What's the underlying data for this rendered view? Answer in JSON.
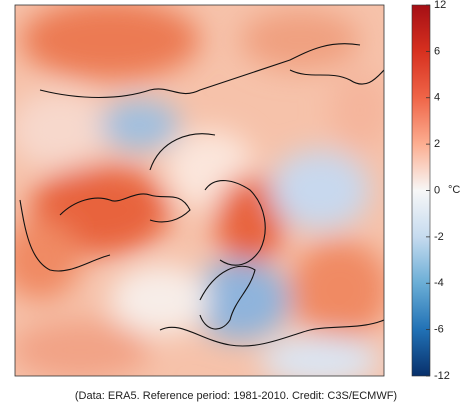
{
  "colorbar": {
    "ticks": [
      12,
      6,
      4,
      2,
      0,
      -2,
      -4,
      -6,
      -12
    ],
    "unit": "°C",
    "colors": [
      "#a50f15",
      "#d7301f",
      "#ef6548",
      "#fcae91",
      "#f7f7f7",
      "#c6dbef",
      "#6baed6",
      "#2171b5",
      "#08306b"
    ]
  },
  "caption": "(Data: ERA5.  Reference period: 1981-2010.  Credit: C3S/ECMWF)"
}
